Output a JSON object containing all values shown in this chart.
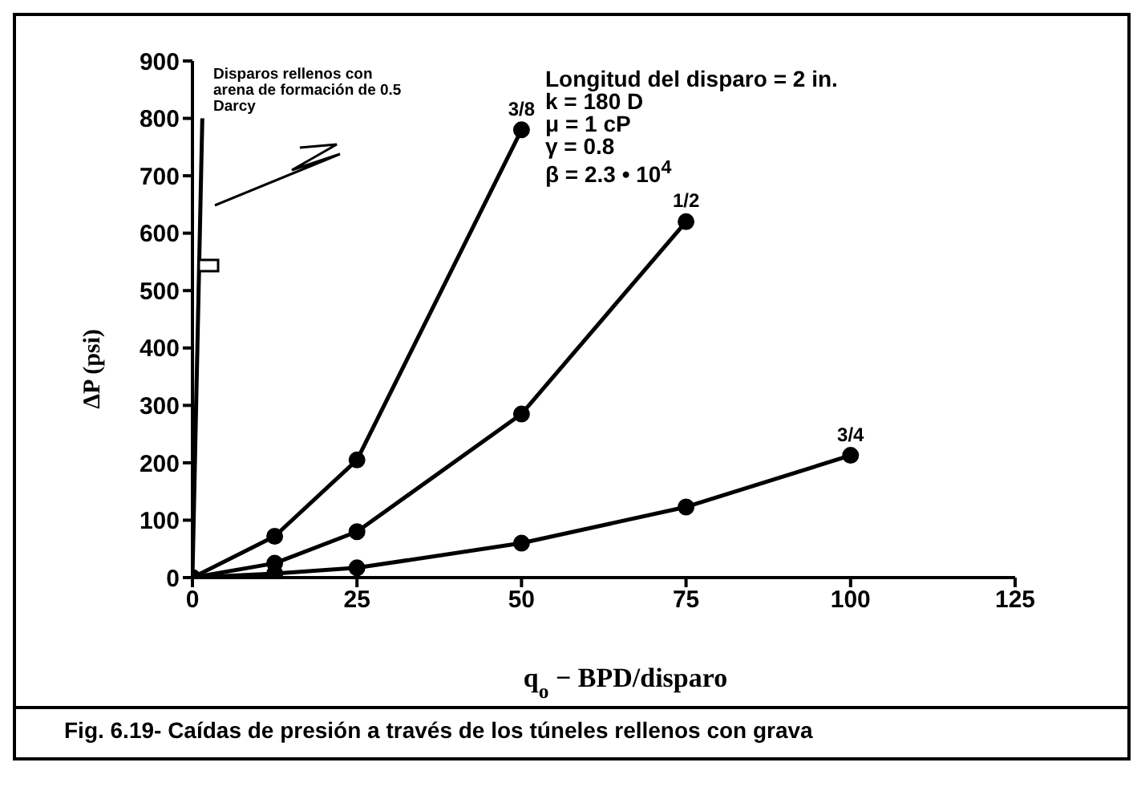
{
  "chart_data": {
    "type": "line",
    "xlabel": "q$_{o}$ − BPD/disparo",
    "ylabel": "ΔP (psi)",
    "xlim": [
      0,
      125
    ],
    "xticks": [
      0,
      25,
      50,
      75,
      100,
      125
    ],
    "ylim": [
      0,
      900
    ],
    "yticks": [
      0,
      100,
      200,
      300,
      400,
      500,
      600,
      700,
      800,
      900
    ],
    "grid": false,
    "legend": false,
    "marker": "circle",
    "line_style": "solid",
    "series": [
      {
        "name": "3/8",
        "color": "#000000",
        "x": [
          0,
          12.5,
          25,
          50
        ],
        "values": [
          0,
          72,
          205,
          780
        ]
      },
      {
        "name": "1/2",
        "color": "#000000",
        "x": [
          0,
          12.5,
          25,
          50,
          75
        ],
        "values": [
          0,
          25,
          80,
          285,
          620
        ]
      },
      {
        "name": "3/4",
        "color": "#000000",
        "x": [
          0,
          12.5,
          25,
          50,
          75,
          100
        ],
        "values": [
          0,
          7,
          17,
          60,
          123,
          213
        ]
      },
      {
        "color": "#000000",
        "x": [
          0,
          1.5
        ],
        "values": [
          0,
          800
        ],
        "marker": "none"
      }
    ],
    "annotations": [
      "Disparos rellenos con arena de formación de 0.5 Darcy",
      "Longitud del disparo = 2 in.\nk = 180 D\nμ = 1 cP\nγ = 0.8\nβ = 2.3 • 10$^{4}$",
      "Fig. 6.19- Caídas de presión a través de los túneles rellenos con grava"
    ]
  }
}
